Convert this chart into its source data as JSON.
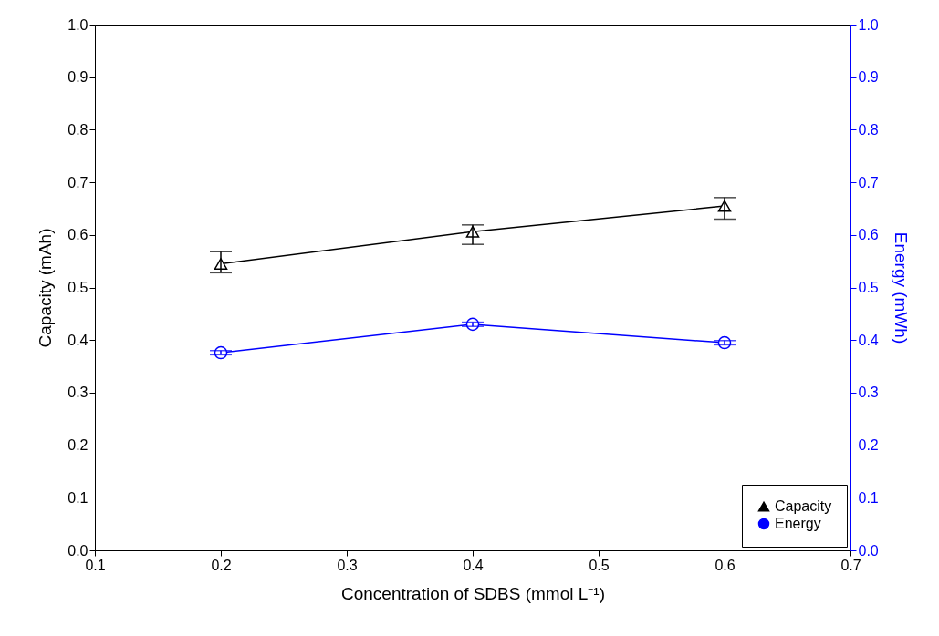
{
  "chart_data": {
    "type": "line",
    "xlabel": "Concentration of SDBS (mmol L⁻¹)",
    "ylabel": "Capacity (mAh)",
    "y2label": "Energy (mWh)",
    "x": [
      0.2,
      0.4,
      0.6
    ],
    "series": [
      {
        "name": "Capacity",
        "color": "#000000",
        "marker": "triangle",
        "values": [
          0.545,
          0.606,
          0.655
        ],
        "errors": [
          [
            0.528,
            0.568
          ],
          [
            0.582,
            0.619
          ],
          [
            0.63,
            0.671
          ]
        ]
      },
      {
        "name": "Energy",
        "color": "#0000ff",
        "marker": "circle",
        "axis": "y2",
        "values": [
          0.376,
          0.43,
          0.395
        ],
        "errors": [
          [
            0.372,
            0.38
          ],
          [
            0.426,
            0.434
          ],
          [
            0.391,
            0.399
          ]
        ]
      }
    ],
    "xlim": [
      0.1,
      0.7
    ],
    "xticks": [
      0.1,
      0.2,
      0.3,
      0.4,
      0.5,
      0.6,
      0.7
    ],
    "ylim": [
      0,
      1
    ],
    "yticks": [
      {
        "value": 0,
        "label": "0.0"
      },
      0.1,
      0.2,
      0.3,
      0.4,
      0.5,
      0.6,
      0.7,
      0.8,
      0.9,
      {
        "value": 1,
        "label": "1.0"
      }
    ],
    "y2lim": [
      0,
      1
    ],
    "y2ticks": [
      {
        "value": 0,
        "label": "0.0"
      },
      0.1,
      0.2,
      0.3,
      0.4,
      0.5,
      0.6,
      0.7,
      0.8,
      0.9,
      {
        "value": 1,
        "label": "1.0"
      }
    ],
    "grid": false,
    "legend": "bottom right"
  }
}
